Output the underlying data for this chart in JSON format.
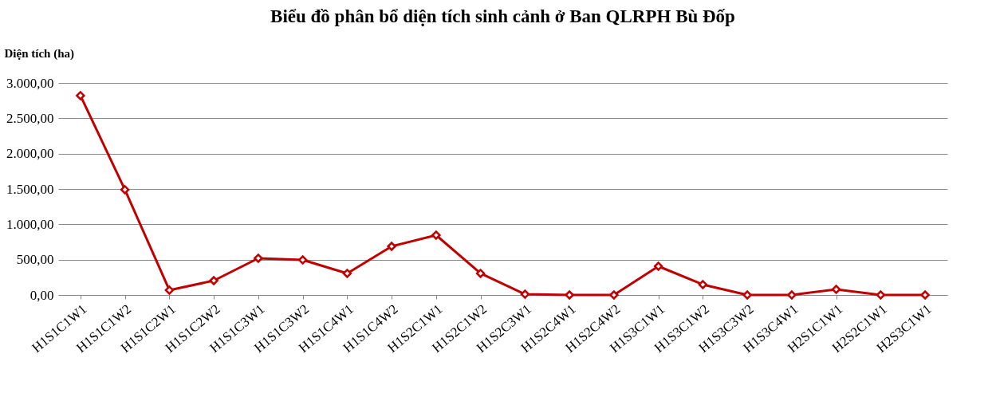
{
  "chart_data": {
    "type": "line",
    "title": "Biểu đồ phân bổ diện tích sinh cảnh ở Ban QLRPH Bù Đốp",
    "ylabel": "Diện tích (ha)",
    "categories": [
      "H1S1C1W1",
      "H1S1C1W2",
      "H1S1C2W1",
      "H1S1C2W2",
      "H1S1C3W1",
      "H1S1C3W2",
      "H1S1C4W1",
      "H1S1C4W2",
      "H1S2C1W1",
      "H1S2C1W2",
      "H1S2C3W1",
      "H1S2C4W1",
      "H1S2C4W2",
      "H1S3C1W1",
      "H1S3C1W2",
      "H1S3C3W2",
      "H1S3C4W1",
      "H2S1C1W1",
      "H2S2C1W1",
      "H2S3C1W1"
    ],
    "series": [
      {
        "color": "#c00000",
        "values": [
          2820,
          1490,
          68,
          203,
          519,
          496,
          305,
          688,
          846,
          305,
          11,
          0,
          0,
          406,
          147,
          0,
          0,
          79,
          0,
          0
        ]
      }
    ],
    "ylim": [
      0,
      3000
    ],
    "yticks": [
      {
        "value": 0,
        "label": "0,00"
      },
      {
        "value": 500,
        "label": "500,00"
      },
      {
        "value": 1000,
        "label": "1.000,00"
      },
      {
        "value": 1500,
        "label": "1.500,00"
      },
      {
        "value": 2000,
        "label": "2.000,00"
      },
      {
        "value": 2500,
        "label": "2.500,00"
      },
      {
        "value": 3000,
        "label": "3.000,00"
      }
    ],
    "grid": "y",
    "legend": false,
    "marker": "diamond",
    "line_style": "solid"
  }
}
